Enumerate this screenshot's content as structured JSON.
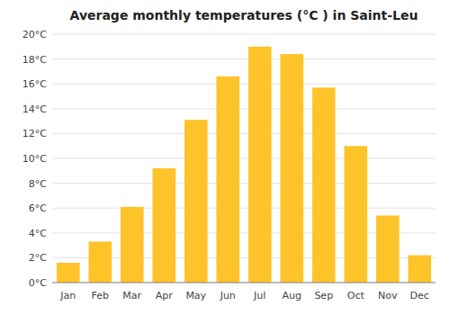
{
  "chart_data": {
    "type": "bar",
    "title": "Average monthly temperatures (°C ) in Saint-Leu",
    "categories": [
      "Jan",
      "Feb",
      "Mar",
      "Apr",
      "May",
      "Jun",
      "Jul",
      "Aug",
      "Sep",
      "Oct",
      "Nov",
      "Dec"
    ],
    "values": [
      1.6,
      3.3,
      6.1,
      9.2,
      13.1,
      16.6,
      19.0,
      18.4,
      15.7,
      11.0,
      5.4,
      2.2
    ],
    "color": "#FFC32A",
    "ylim": [
      0,
      20
    ],
    "yticks": [
      {
        "value": 0,
        "label": "0°C"
      },
      {
        "value": 2,
        "label": "2°C"
      },
      {
        "value": 4,
        "label": "4°C"
      },
      {
        "value": 6,
        "label": "6°C"
      },
      {
        "value": 8,
        "label": "8°C"
      },
      {
        "value": 10,
        "label": "10°C"
      },
      {
        "value": 12,
        "label": "12°C"
      },
      {
        "value": 14,
        "label": "14°C"
      },
      {
        "value": 16,
        "label": "16°C"
      },
      {
        "value": 18,
        "label": "18°C"
      },
      {
        "value": 20,
        "label": "20°C"
      }
    ],
    "grid": true
  }
}
